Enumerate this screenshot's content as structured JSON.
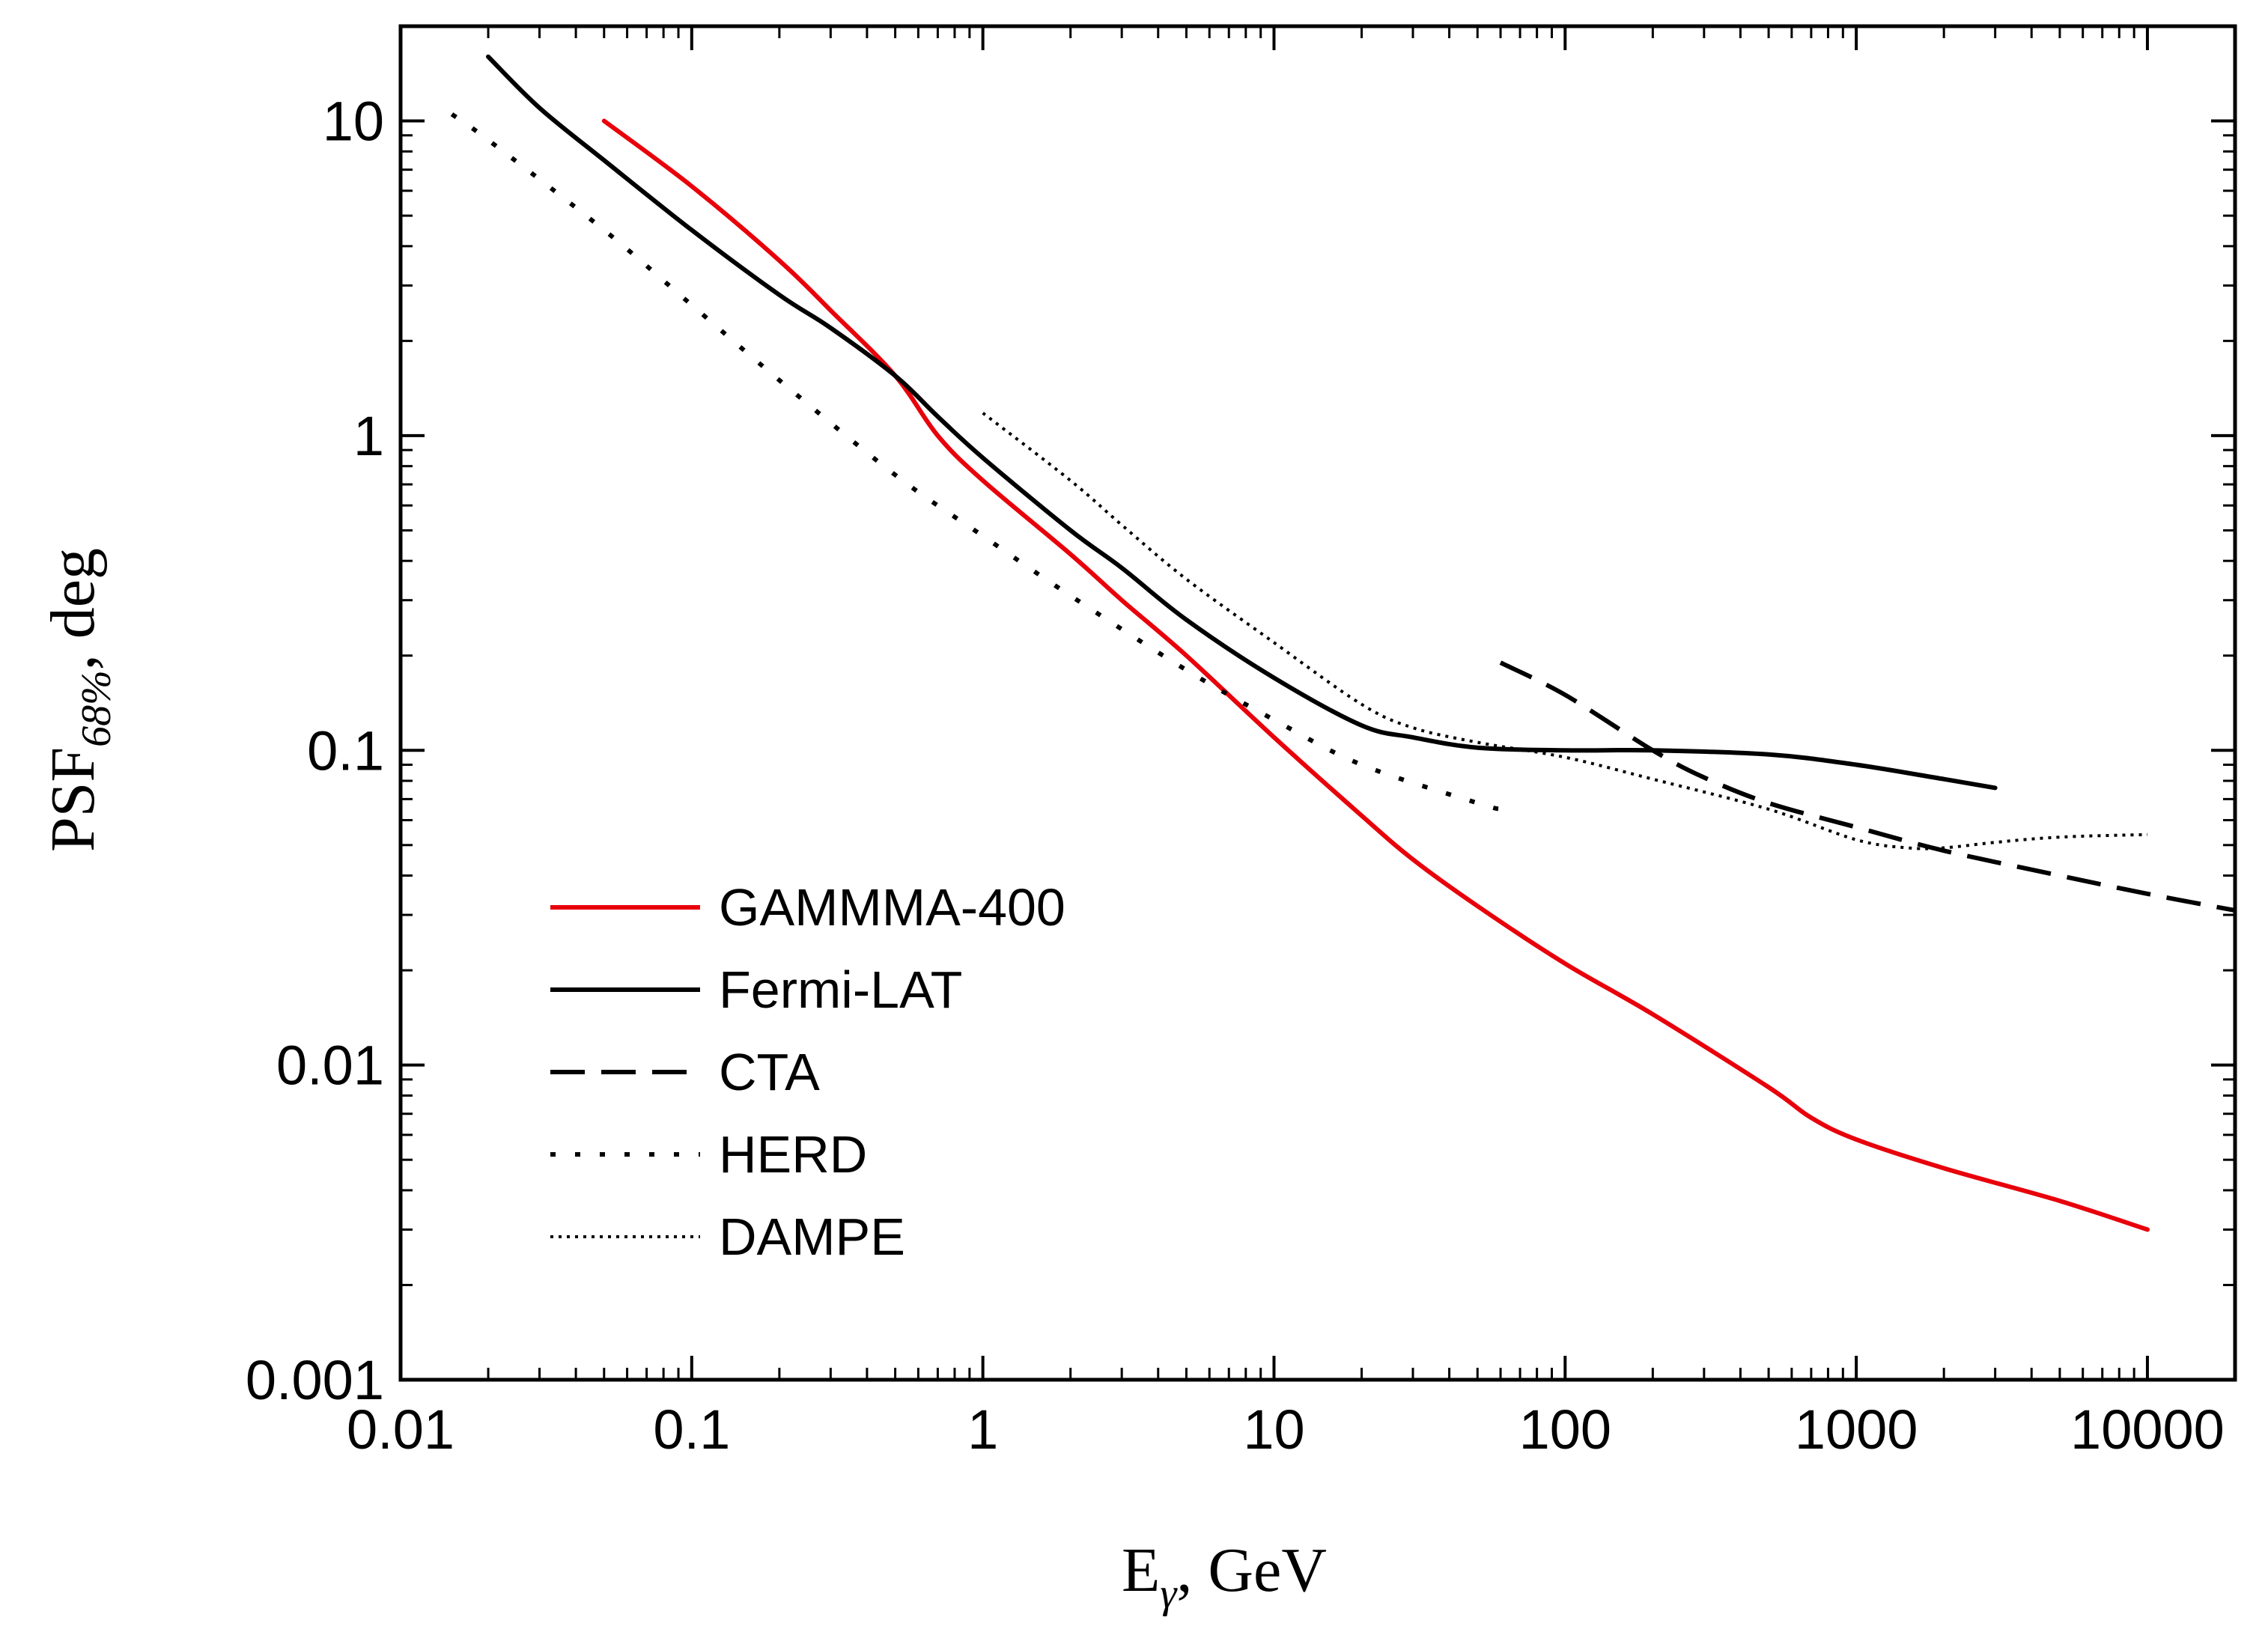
{
  "chart_data": {
    "type": "line",
    "title": "",
    "xlabel": {
      "main": "E",
      "sub": "γ",
      "suffix": ", GeV"
    },
    "ylabel": {
      "main": "PSF",
      "sub": "68%",
      "suffix": ", deg"
    },
    "xscale": "log",
    "yscale": "log",
    "xlim": [
      0.01,
      20000
    ],
    "ylim": [
      0.001,
      20
    ],
    "x_ticks": [
      {
        "value": 0.01,
        "label": "0.01"
      },
      {
        "value": 0.1,
        "label": "0.1"
      },
      {
        "value": 1,
        "label": "1"
      },
      {
        "value": 10,
        "label": "10"
      },
      {
        "value": 100,
        "label": "100"
      },
      {
        "value": 1000,
        "label": "1000"
      },
      {
        "value": 10000,
        "label": "10000"
      }
    ],
    "y_ticks": [
      {
        "value": 0.001,
        "label": "0.001"
      },
      {
        "value": 0.01,
        "label": "0.01"
      },
      {
        "value": 0.1,
        "label": "0.1"
      },
      {
        "value": 1,
        "label": "1"
      },
      {
        "value": 10,
        "label": "10"
      }
    ],
    "grid": false,
    "legend_position": "bottom-left",
    "series": [
      {
        "name": "GAMMMA-400",
        "color": "#e8000b",
        "style": "solid",
        "points": [
          [
            0.05,
            10
          ],
          [
            0.1,
            6.2
          ],
          [
            0.2,
            3.6
          ],
          [
            0.3,
            2.5
          ],
          [
            0.5,
            1.55
          ],
          [
            0.7,
            1.0
          ],
          [
            1,
            0.72
          ],
          [
            2,
            0.42
          ],
          [
            3,
            0.3
          ],
          [
            5,
            0.2
          ],
          [
            10,
            0.11
          ],
          [
            20,
            0.062
          ],
          [
            30,
            0.045
          ],
          [
            50,
            0.032
          ],
          [
            100,
            0.021
          ],
          [
            200,
            0.0145
          ],
          [
            500,
            0.0085
          ],
          [
            700,
            0.0068
          ],
          [
            1000,
            0.0058
          ],
          [
            2000,
            0.0047
          ],
          [
            5000,
            0.0037
          ],
          [
            10000,
            0.003
          ]
        ]
      },
      {
        "name": "Fermi-LAT",
        "color": "#000000",
        "style": "solid",
        "points": [
          [
            0.02,
            16
          ],
          [
            0.03,
            11
          ],
          [
            0.05,
            7.5
          ],
          [
            0.1,
            4.5
          ],
          [
            0.2,
            2.8
          ],
          [
            0.3,
            2.2
          ],
          [
            0.5,
            1.55
          ],
          [
            0.7,
            1.15
          ],
          [
            1,
            0.85
          ],
          [
            2,
            0.5
          ],
          [
            3,
            0.38
          ],
          [
            5,
            0.26
          ],
          [
            10,
            0.17
          ],
          [
            20,
            0.12
          ],
          [
            30,
            0.11
          ],
          [
            50,
            0.102
          ],
          [
            100,
            0.1
          ],
          [
            200,
            0.1
          ],
          [
            500,
            0.097
          ],
          [
            1000,
            0.09
          ],
          [
            2000,
            0.081
          ],
          [
            3000,
            0.076
          ]
        ]
      },
      {
        "name": "CTA",
        "color": "#000000",
        "style": "dash",
        "points": [
          [
            60,
            0.19
          ],
          [
            100,
            0.15
          ],
          [
            200,
            0.1
          ],
          [
            300,
            0.082
          ],
          [
            500,
            0.068
          ],
          [
            1000,
            0.057
          ],
          [
            2000,
            0.048
          ],
          [
            5000,
            0.04
          ],
          [
            10000,
            0.035
          ],
          [
            20000,
            0.031
          ]
        ]
      },
      {
        "name": "HERD",
        "color": "#000000",
        "style": "dot-spaced",
        "points": [
          [
            0.015,
            10.5
          ],
          [
            0.02,
            8.7
          ],
          [
            0.05,
            4.5
          ],
          [
            0.1,
            2.6
          ],
          [
            0.2,
            1.5
          ],
          [
            0.5,
            0.75
          ],
          [
            1,
            0.48
          ],
          [
            2,
            0.31
          ],
          [
            5,
            0.18
          ],
          [
            10,
            0.125
          ],
          [
            20,
            0.09
          ],
          [
            50,
            0.068
          ],
          [
            60,
            0.065
          ]
        ]
      },
      {
        "name": "DAMPE",
        "color": "#000000",
        "style": "dot-dense",
        "points": [
          [
            1,
            1.18
          ],
          [
            2,
            0.72
          ],
          [
            3,
            0.52
          ],
          [
            5,
            0.35
          ],
          [
            10,
            0.22
          ],
          [
            20,
            0.14
          ],
          [
            30,
            0.118
          ],
          [
            50,
            0.106
          ],
          [
            100,
            0.095
          ],
          [
            200,
            0.081
          ],
          [
            500,
            0.065
          ],
          [
            1000,
            0.052
          ],
          [
            1500,
            0.049
          ],
          [
            2000,
            0.049
          ],
          [
            3000,
            0.051
          ],
          [
            5000,
            0.053
          ],
          [
            10000,
            0.054
          ]
        ]
      }
    ]
  }
}
